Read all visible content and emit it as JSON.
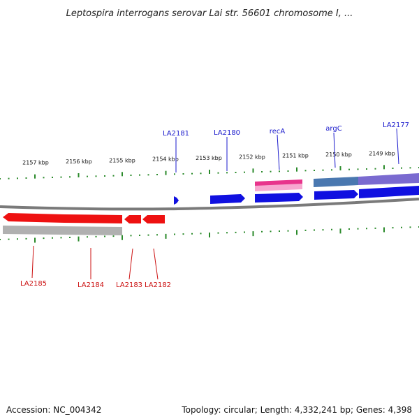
{
  "title": "Leptospira interrogans serovar Lai str. 56601 chromosome I, ...",
  "footer": {
    "accession": "Accession: NC_004342",
    "topology": "Topology: circular; Length: 4,332,241 bp; Genes: 4,398"
  },
  "colors": {
    "forward_label": "#1a1acc",
    "reverse_label": "#cc1111",
    "tick": "#2a8a2a",
    "backbone": "#7a7a7a",
    "forward_gene": "#1010e0",
    "reverse_gene": "#ee1111",
    "rna_gray": "#b0b0b0",
    "magenta": "#e8348c",
    "steel": "#4a78b0",
    "violet": "#7a6ad0"
  },
  "top_scale": {
    "labels": [
      "2157 kbp",
      "2156 kbp",
      "2155 kbp",
      "2154 kbp",
      "2153 kbp",
      "2152 kbp",
      "2151 kbp",
      "2150 kbp",
      "2149 kbp"
    ]
  },
  "forward_genes": [
    {
      "name": "LA2181",
      "icon": "small-forward-arrow"
    },
    {
      "name": "LA2180",
      "icon": "forward-arrow"
    },
    {
      "name": "recA",
      "icon": "forward-arrow"
    },
    {
      "name": "argC",
      "icon": "forward-arrow"
    },
    {
      "name": "LA2177",
      "icon": "forward-arrow"
    }
  ],
  "reverse_genes": [
    {
      "name": "LA2185",
      "icon": "reverse-arrow"
    },
    {
      "name": "LA2184",
      "icon": "reverse-arrow"
    },
    {
      "name": "LA2183",
      "icon": "reverse-arrow"
    },
    {
      "name": "LA2182",
      "icon": "reverse-arrow"
    }
  ]
}
